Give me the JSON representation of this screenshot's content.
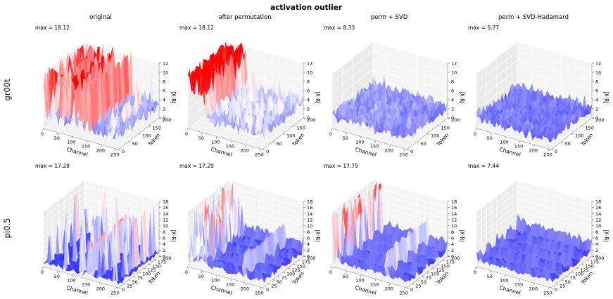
{
  "figure": {
    "title": "activation outlier",
    "columns": [
      "original",
      "after permutation",
      "perm + SVD",
      "perm + SVD-Hadamard"
    ],
    "rows": [
      "gr00t",
      "pi0.5"
    ]
  },
  "chart_data": [
    {
      "type": "surface3d",
      "row": "gr00t",
      "column": "original",
      "annotation": "max = 18.12",
      "xlabel": "Channel",
      "ylabel": "Token",
      "zlabel": "|X·R|",
      "xticks": [
        0,
        50,
        100,
        150,
        200,
        250
      ],
      "yticks": [
        0,
        50,
        100,
        150,
        200
      ],
      "zticks": [
        0,
        2,
        4,
        6,
        8,
        10,
        12
      ],
      "xlim": [
        0,
        256
      ],
      "ylim": [
        0,
        200
      ],
      "zlim": [
        0,
        12
      ],
      "max": 18.12,
      "pattern": "dense-outliers",
      "colors": [
        "#0000ff",
        "#ffffff",
        "#ff0000"
      ]
    },
    {
      "type": "surface3d",
      "row": "gr00t",
      "column": "after permutation",
      "annotation": "max = 18.12",
      "xlabel": "Channel",
      "ylabel": "Token",
      "zlabel": "|X·R|",
      "xticks": [
        0,
        50,
        100,
        150,
        200,
        250
      ],
      "yticks": [
        0,
        50,
        100,
        150,
        200
      ],
      "zticks": [
        0,
        2,
        4,
        6,
        8,
        10,
        12
      ],
      "xlim": [
        0,
        256
      ],
      "ylim": [
        0,
        200
      ],
      "zlim": [
        0,
        12
      ],
      "max": 18.12,
      "pattern": "permuted-outliers",
      "colors": [
        "#0000ff",
        "#ffffff",
        "#ff0000"
      ]
    },
    {
      "type": "surface3d",
      "row": "gr00t",
      "column": "perm + SVD",
      "annotation": "max = 8.33",
      "xlabel": "Channel",
      "ylabel": "Token",
      "zlabel": "|X·R|",
      "xticks": [
        0,
        50,
        100,
        150,
        200,
        250
      ],
      "yticks": [
        0,
        50,
        100,
        150,
        200
      ],
      "zticks": [
        0,
        2,
        4,
        6,
        8,
        10,
        12
      ],
      "xlim": [
        0,
        256
      ],
      "ylim": [
        0,
        200
      ],
      "zlim": [
        0,
        12
      ],
      "max": 8.33,
      "pattern": "flat",
      "colors": [
        "#0000ff",
        "#ffffff",
        "#ff0000"
      ]
    },
    {
      "type": "surface3d",
      "row": "gr00t",
      "column": "perm + SVD-Hadamard",
      "annotation": "max = 5.77",
      "xlabel": "Channel",
      "ylabel": "Token",
      "zlabel": "|X·R|",
      "xticks": [
        0,
        50,
        100,
        150,
        200,
        250
      ],
      "yticks": [
        0,
        50,
        100,
        150,
        200
      ],
      "zticks": [
        0,
        2,
        4,
        6,
        8,
        10,
        12
      ],
      "xlim": [
        0,
        256
      ],
      "ylim": [
        0,
        200
      ],
      "zlim": [
        0,
        12
      ],
      "max": 5.77,
      "pattern": "flat-low",
      "colors": [
        "#0000ff",
        "#ffffff",
        "#ff0000"
      ]
    },
    {
      "type": "surface3d",
      "row": "pi0.5",
      "column": "original",
      "annotation": "max = 17.29",
      "xlabel": "Channel",
      "ylabel": "Token",
      "zlabel": "|X·R|",
      "xticks": [
        0,
        50,
        100,
        150,
        200,
        250
      ],
      "yticks": [
        0,
        25,
        50,
        75,
        100,
        125,
        150,
        175,
        200
      ],
      "zticks": [
        0,
        2,
        4,
        6,
        8,
        10,
        12,
        14,
        16,
        18
      ],
      "xlim": [
        0,
        256
      ],
      "ylim": [
        0,
        200
      ],
      "zlim": [
        0,
        18
      ],
      "max": 17.29,
      "pattern": "sparse-spikes",
      "colors": [
        "#0000ff",
        "#ffffff",
        "#ff0000"
      ]
    },
    {
      "type": "surface3d",
      "row": "pi0.5",
      "column": "after permutation",
      "annotation": "max = 17.29",
      "xlabel": "Channel",
      "ylabel": "Token",
      "zlabel": "|X·R|",
      "xticks": [
        0,
        50,
        100,
        150,
        200,
        250
      ],
      "yticks": [
        0,
        25,
        50,
        75,
        100,
        125,
        150,
        175,
        200
      ],
      "zticks": [
        0,
        2,
        4,
        6,
        8,
        10,
        12,
        14,
        16,
        18
      ],
      "xlim": [
        0,
        256
      ],
      "ylim": [
        0,
        200
      ],
      "zlim": [
        0,
        18
      ],
      "max": 17.29,
      "pattern": "grouped-spikes",
      "colors": [
        "#0000ff",
        "#ffffff",
        "#ff0000"
      ]
    },
    {
      "type": "surface3d",
      "row": "pi0.5",
      "column": "perm + SVD",
      "annotation": "max = 17.75",
      "xlabel": "Channel",
      "ylabel": "Token",
      "zlabel": "|X·R|",
      "xticks": [
        0,
        50,
        100,
        150,
        200,
        250
      ],
      "yticks": [
        0,
        25,
        50,
        75,
        100,
        125,
        150,
        175,
        200
      ],
      "zticks": [
        0,
        2,
        4,
        6,
        8,
        10,
        12,
        14,
        16,
        18
      ],
      "xlim": [
        0,
        256
      ],
      "ylim": [
        0,
        200
      ],
      "zlim": [
        0,
        18
      ],
      "max": 17.75,
      "pattern": "ridges-spikes",
      "colors": [
        "#0000ff",
        "#ffffff",
        "#ff0000"
      ]
    },
    {
      "type": "surface3d",
      "row": "pi0.5",
      "column": "perm + SVD-Hadamard",
      "annotation": "max = 7.44",
      "xlabel": "Channel",
      "ylabel": "Token",
      "zlabel": "|X·R|",
      "xticks": [
        0,
        50,
        100,
        150,
        200,
        250
      ],
      "yticks": [
        0,
        25,
        50,
        75,
        100,
        125,
        150,
        175,
        200
      ],
      "zticks": [
        0,
        2,
        4,
        6,
        8,
        10,
        12,
        14,
        16,
        18
      ],
      "xlim": [
        0,
        256
      ],
      "ylim": [
        0,
        200
      ],
      "zlim": [
        0,
        18
      ],
      "max": 7.44,
      "pattern": "ridges-low",
      "colors": [
        "#0000ff",
        "#ffffff",
        "#ff0000"
      ]
    }
  ]
}
